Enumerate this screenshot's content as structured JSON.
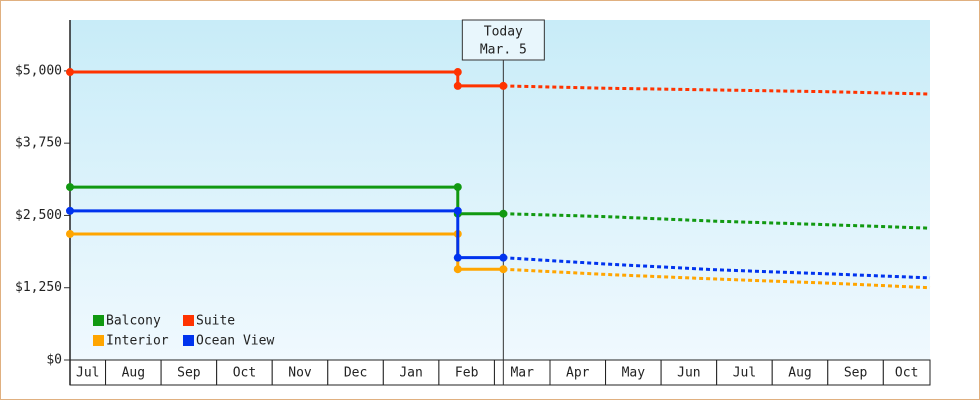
{
  "chart_data": {
    "type": "line",
    "legend": "lower left",
    "grid": false,
    "xlim": [
      0.36,
      15.84
    ],
    "categories": [
      "Jul",
      "Aug",
      "Sep",
      "Oct",
      "Nov",
      "Dec",
      "Jan",
      "Feb",
      "Mar",
      "Apr",
      "May",
      "Jun",
      "Jul",
      "Aug",
      "Sep",
      "Oct"
    ],
    "ylim": [
      0,
      5880
    ],
    "yticks": [
      {
        "value": 0,
        "label": "$0"
      },
      {
        "value": 1250,
        "label": "$1,250"
      },
      {
        "value": 2500,
        "label": "$2,500"
      },
      {
        "value": 3750,
        "label": "$3,750"
      },
      {
        "value": 5000,
        "label": "$5,000"
      }
    ],
    "annotation": {
      "text": [
        "Today",
        "Mar. 5"
      ],
      "x": 8.16
    },
    "series": [
      {
        "name": "Balcony",
        "color": "#119911",
        "x": [
          0.36,
          7.34,
          7.34,
          8.16
        ],
        "values": [
          2990,
          2990,
          2530,
          2530
        ],
        "projection": {
          "x": [
            8.16,
            10,
            12,
            14,
            15.84
          ],
          "values": [
            2530,
            2480,
            2400,
            2340,
            2280
          ]
        }
      },
      {
        "name": "Suite",
        "color": "#ff3300",
        "x": [
          0.36,
          7.34,
          7.34,
          8.16
        ],
        "values": [
          4980,
          4980,
          4740,
          4740
        ],
        "projection": {
          "x": [
            8.16,
            10,
            12,
            14,
            15.84
          ],
          "values": [
            4740,
            4700,
            4670,
            4640,
            4600
          ]
        }
      },
      {
        "name": "Interior",
        "color": "#ffa500",
        "x": [
          0.36,
          7.34,
          7.34,
          8.16
        ],
        "values": [
          2180,
          2180,
          1570,
          1570
        ],
        "projection": {
          "x": [
            8.16,
            10,
            12,
            14,
            15.84
          ],
          "values": [
            1570,
            1480,
            1400,
            1330,
            1250
          ]
        }
      },
      {
        "name": "Ocean View",
        "color": "#0033ee",
        "x": [
          0.36,
          7.34,
          7.34,
          8.16
        ],
        "values": [
          2580,
          2580,
          1770,
          1770
        ],
        "projection": {
          "x": [
            8.16,
            10,
            12,
            14,
            15.84
          ],
          "values": [
            1770,
            1660,
            1560,
            1490,
            1420
          ]
        }
      }
    ]
  }
}
